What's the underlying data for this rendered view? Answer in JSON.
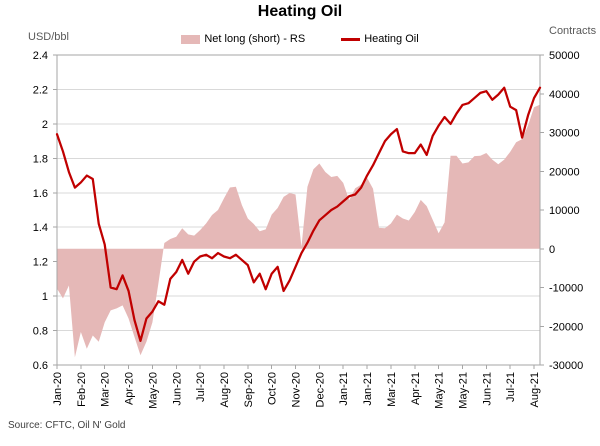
{
  "title": "Heating Oil",
  "legend": {
    "items": [
      {
        "label": "Net long (short) - RS",
        "type": "area",
        "color": "#E5B8B7"
      },
      {
        "label": "Heating Oil",
        "type": "line",
        "color": "#C00000"
      }
    ]
  },
  "left_axis": {
    "label": "USD/bbl",
    "min": 0.6,
    "max": 2.4,
    "step": 0.2,
    "ticks": [
      "2.4",
      "2.2",
      "2",
      "1.8",
      "1.6",
      "1.4",
      "1.2",
      "1",
      "0.8",
      "0.6"
    ]
  },
  "right_axis": {
    "label": "Contracts",
    "min": -30000,
    "max": 50000,
    "step": 10000,
    "ticks": [
      "50000",
      "40000",
      "30000",
      "20000",
      "10000",
      "0",
      "-10000",
      "-20000",
      "-30000"
    ]
  },
  "source": "Source: CFTC, Oil N' Gold",
  "colors": {
    "line": "#C00000",
    "area": "#E5B8B7",
    "grid": "#D9D9D9",
    "axis": "#A6A6A6",
    "tick_text": "#000000",
    "unit_text": "#595959",
    "source_text": "#404040"
  },
  "chart_data": {
    "type": "line+area",
    "title": "Heating Oil",
    "x_axis_note": "weekly points Jan-2020 to Aug-2021, labels every 4th point",
    "x_labels": [
      "Jan-20",
      "Feb-20",
      "Mar-20",
      "Apr-20",
      "May-20",
      "Jun-20",
      "Jul-20",
      "Aug-20",
      "Sep-20",
      "Oct-20",
      "Nov-20",
      "Dec-20",
      "Jan-21",
      "Jan-21",
      "Mar-21",
      "Apr-21",
      "May-21",
      "May-21",
      "Jun-21",
      "Jul-21",
      "Aug-21"
    ],
    "x_label_every_n_points": 4,
    "grid": "horizontal",
    "legend_position": "top-center",
    "series": [
      {
        "name": "Net long (short) - RS",
        "type": "area",
        "axis": "right",
        "axis_range": [
          -30000,
          50000
        ],
        "color": "#E5B8B7",
        "values": [
          -10300,
          -12800,
          -9500,
          -28000,
          -21500,
          -25800,
          -22400,
          -24000,
          -19000,
          -15900,
          -15400,
          -14600,
          -18000,
          -22800,
          -27500,
          -24000,
          -19000,
          -9000,
          1500,
          2500,
          3100,
          5300,
          3700,
          3400,
          4800,
          6500,
          8700,
          10000,
          13000,
          15800,
          16000,
          11300,
          7800,
          6400,
          4500,
          5000,
          8800,
          10500,
          13400,
          14400,
          14000,
          500,
          16000,
          20500,
          22000,
          19800,
          18500,
          18800,
          17000,
          12500,
          15600,
          16500,
          18300,
          15500,
          5400,
          5300,
          6500,
          8800,
          7800,
          7300,
          9500,
          12600,
          11000,
          7500,
          4000,
          6800,
          24000,
          24000,
          22000,
          22300,
          23900,
          24000,
          24700,
          23000,
          21800,
          23000,
          25000,
          27500,
          28300,
          31800,
          36500,
          37200
        ]
      },
      {
        "name": "Heating Oil",
        "type": "line",
        "axis": "left",
        "axis_range": [
          0.6,
          2.4
        ],
        "color": "#C00000",
        "values": [
          1.94,
          1.84,
          1.72,
          1.63,
          1.66,
          1.7,
          1.68,
          1.42,
          1.3,
          1.05,
          1.04,
          1.12,
          1.03,
          0.86,
          0.74,
          0.87,
          0.91,
          0.97,
          0.95,
          1.1,
          1.14,
          1.21,
          1.13,
          1.2,
          1.23,
          1.24,
          1.22,
          1.25,
          1.23,
          1.22,
          1.24,
          1.21,
          1.18,
          1.08,
          1.13,
          1.04,
          1.13,
          1.17,
          1.03,
          1.09,
          1.17,
          1.25,
          1.31,
          1.38,
          1.44,
          1.47,
          1.5,
          1.52,
          1.55,
          1.58,
          1.59,
          1.63,
          1.7,
          1.76,
          1.83,
          1.9,
          1.94,
          1.97,
          1.84,
          1.83,
          1.83,
          1.88,
          1.82,
          1.93,
          1.99,
          2.04,
          2.0,
          2.06,
          2.11,
          2.12,
          2.15,
          2.18,
          2.19,
          2.14,
          2.17,
          2.21,
          2.1,
          2.08,
          1.92,
          2.05,
          2.15,
          2.21
        ]
      }
    ]
  }
}
